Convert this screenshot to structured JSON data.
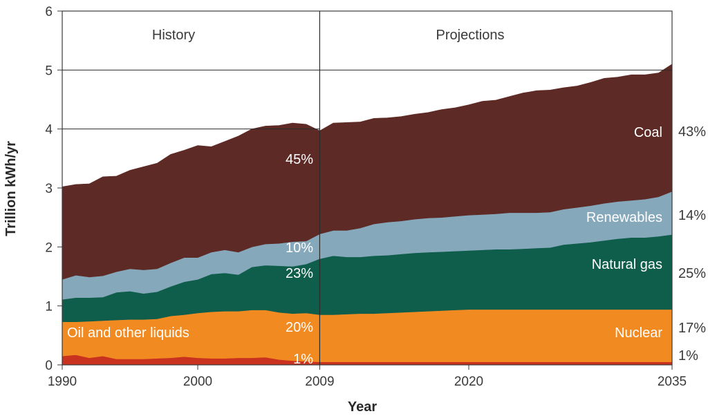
{
  "chart_data": {
    "type": "area",
    "stacked": true,
    "xlabel": "Year",
    "ylabel": "Trillion kWh/yr",
    "xlim": [
      1990,
      2035
    ],
    "ylim": [
      0,
      6
    ],
    "x_ticks": [
      "1990",
      "2000",
      "2009",
      "2020",
      "2035"
    ],
    "y_ticks": [
      "0",
      "1",
      "2",
      "3",
      "4",
      "5",
      "6"
    ],
    "grid": "horizontal lines at 4 and 5 (History area), 5 (Projections area)",
    "legend": "none (labels inside areas)",
    "periods": [
      {
        "label": "History",
        "range": [
          1990,
          2009
        ]
      },
      {
        "label": "Projections",
        "range": [
          2009,
          2035
        ]
      }
    ],
    "x": [
      1990,
      1991,
      1992,
      1993,
      1994,
      1995,
      1996,
      1997,
      1998,
      1999,
      2000,
      2001,
      2002,
      2003,
      2004,
      2005,
      2006,
      2007,
      2008,
      2009,
      2010,
      2011,
      2012,
      2013,
      2014,
      2015,
      2016,
      2017,
      2018,
      2019,
      2020,
      2021,
      2022,
      2023,
      2024,
      2025,
      2026,
      2027,
      2028,
      2029,
      2030,
      2031,
      2032,
      2033,
      2034,
      2035
    ],
    "series": [
      {
        "name": "Oil and other liquids (bottom)",
        "color": "#c8321e",
        "values": [
          0.15,
          0.17,
          0.12,
          0.15,
          0.1,
          0.1,
          0.1,
          0.11,
          0.12,
          0.14,
          0.12,
          0.11,
          0.11,
          0.12,
          0.12,
          0.13,
          0.09,
          0.07,
          0.06,
          0.05,
          0.05,
          0.05,
          0.05,
          0.05,
          0.05,
          0.05,
          0.05,
          0.05,
          0.05,
          0.05,
          0.05,
          0.05,
          0.05,
          0.05,
          0.05,
          0.05,
          0.05,
          0.05,
          0.05,
          0.05,
          0.05,
          0.05,
          0.05,
          0.05,
          0.05,
          0.05
        ]
      },
      {
        "name": "Nuclear",
        "color": "#f28a22",
        "values": [
          0.58,
          0.56,
          0.62,
          0.6,
          0.66,
          0.67,
          0.67,
          0.67,
          0.71,
          0.71,
          0.76,
          0.79,
          0.8,
          0.79,
          0.81,
          0.8,
          0.8,
          0.8,
          0.82,
          0.8,
          0.8,
          0.81,
          0.82,
          0.82,
          0.83,
          0.84,
          0.85,
          0.86,
          0.87,
          0.88,
          0.89,
          0.89,
          0.89,
          0.89,
          0.89,
          0.89,
          0.89,
          0.89,
          0.89,
          0.89,
          0.89,
          0.89,
          0.89,
          0.89,
          0.89,
          0.89
        ]
      },
      {
        "name": "Natural gas",
        "color": "#0f5e4c",
        "values": [
          0.38,
          0.41,
          0.4,
          0.4,
          0.47,
          0.48,
          0.44,
          0.46,
          0.5,
          0.56,
          0.57,
          0.64,
          0.65,
          0.62,
          0.73,
          0.76,
          0.79,
          0.8,
          0.83,
          0.95,
          1.0,
          0.97,
          0.96,
          0.98,
          0.98,
          0.99,
          1.0,
          1.0,
          1.0,
          1.0,
          1.0,
          1.01,
          1.02,
          1.02,
          1.03,
          1.04,
          1.05,
          1.1,
          1.12,
          1.14,
          1.17,
          1.2,
          1.22,
          1.22,
          1.24,
          1.27
        ]
      },
      {
        "name": "Renewables",
        "color": "#86a8bb",
        "values": [
          0.34,
          0.38,
          0.35,
          0.36,
          0.35,
          0.38,
          0.4,
          0.39,
          0.4,
          0.41,
          0.37,
          0.37,
          0.39,
          0.38,
          0.34,
          0.36,
          0.38,
          0.42,
          0.39,
          0.42,
          0.43,
          0.45,
          0.49,
          0.54,
          0.56,
          0.56,
          0.57,
          0.58,
          0.58,
          0.59,
          0.6,
          0.6,
          0.6,
          0.62,
          0.61,
          0.6,
          0.6,
          0.6,
          0.61,
          0.62,
          0.63,
          0.63,
          0.63,
          0.65,
          0.67,
          0.73
        ]
      },
      {
        "name": "Coal",
        "color": "#5e2a26",
        "values": [
          1.57,
          1.54,
          1.58,
          1.68,
          1.62,
          1.67,
          1.75,
          1.79,
          1.84,
          1.82,
          1.9,
          1.79,
          1.84,
          1.97,
          2.0,
          2.0,
          2.0,
          2.01,
          1.98,
          1.75,
          1.82,
          1.83,
          1.8,
          1.79,
          1.77,
          1.77,
          1.78,
          1.79,
          1.83,
          1.84,
          1.87,
          1.92,
          1.93,
          1.97,
          2.03,
          2.07,
          2.07,
          2.06,
          2.06,
          2.09,
          2.12,
          2.11,
          2.13,
          2.11,
          2.1,
          2.16
        ]
      }
    ]
  },
  "labels": {
    "history": "History",
    "projections": "Projections",
    "coal": "Coal",
    "renewables": "Renewables",
    "natural_gas": "Natural gas",
    "nuclear": "Nuclear",
    "oil": "Oil and other liquids"
  },
  "shares_2009": {
    "coal": "45%",
    "renewables": "10%",
    "natural_gas": "23%",
    "nuclear": "20%",
    "oil": "1%"
  },
  "shares_2035": {
    "coal": "43%",
    "renewables": "14%",
    "natural_gas": "25%",
    "nuclear": "17%",
    "oil": "1%"
  }
}
